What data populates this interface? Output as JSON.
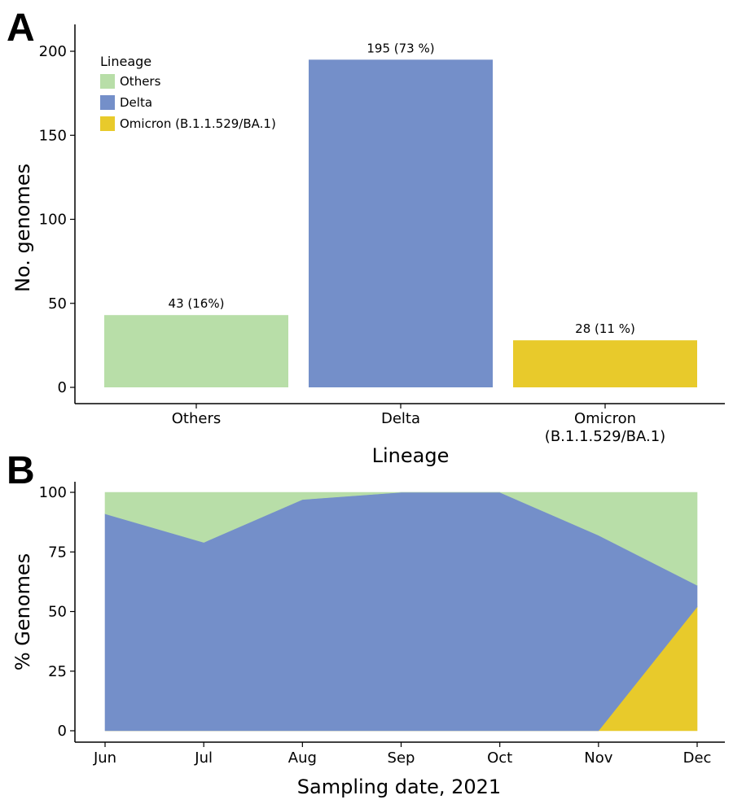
{
  "colors": {
    "others": "#b8dea8",
    "delta": "#748fc9",
    "omicron": "#e8ca2b"
  },
  "chart_data": [
    {
      "panel": "A",
      "type": "bar",
      "xlabel": "Lineage",
      "ylabel": "No. genomes",
      "ylim": [
        0,
        215
      ],
      "yticks": [
        0,
        50,
        100,
        150,
        200
      ],
      "categories": [
        [
          "Others"
        ],
        [
          "Delta"
        ],
        [
          "Omicron",
          "(B.1.1.529/BA.1)"
        ]
      ],
      "values": [
        43,
        195,
        28
      ],
      "data_labels": [
        "43 (16%)",
        "195 (73 %)",
        "28 (11 %)"
      ],
      "bar_color_keys": [
        "others",
        "delta",
        "omicron"
      ],
      "legend": {
        "title": "Lineage",
        "placement": "top-left",
        "entries": [
          {
            "label": "Others",
            "color_key": "others"
          },
          {
            "label": "Delta",
            "color_key": "delta"
          },
          {
            "label": "Omicron (B.1.1.529/BA.1)",
            "color_key": "omicron"
          }
        ]
      }
    },
    {
      "panel": "B",
      "type": "area",
      "stacked": true,
      "xlabel": "Sampling date, 2021",
      "ylabel": "% Genomes",
      "ylim": [
        0,
        100
      ],
      "yticks": [
        0,
        25,
        50,
        75,
        100
      ],
      "x": [
        "Jun",
        "Jul",
        "Aug",
        "Sep",
        "Oct",
        "Nov",
        "Dec"
      ],
      "series": [
        {
          "color_key": "omicron",
          "values": [
            0,
            0,
            0,
            0,
            0,
            0,
            52
          ]
        },
        {
          "color_key": "delta",
          "values": [
            91,
            79,
            97,
            100,
            100,
            82,
            9
          ]
        },
        {
          "color_key": "others",
          "values": [
            9,
            21,
            3,
            0,
            0,
            18,
            39
          ]
        }
      ]
    }
  ]
}
